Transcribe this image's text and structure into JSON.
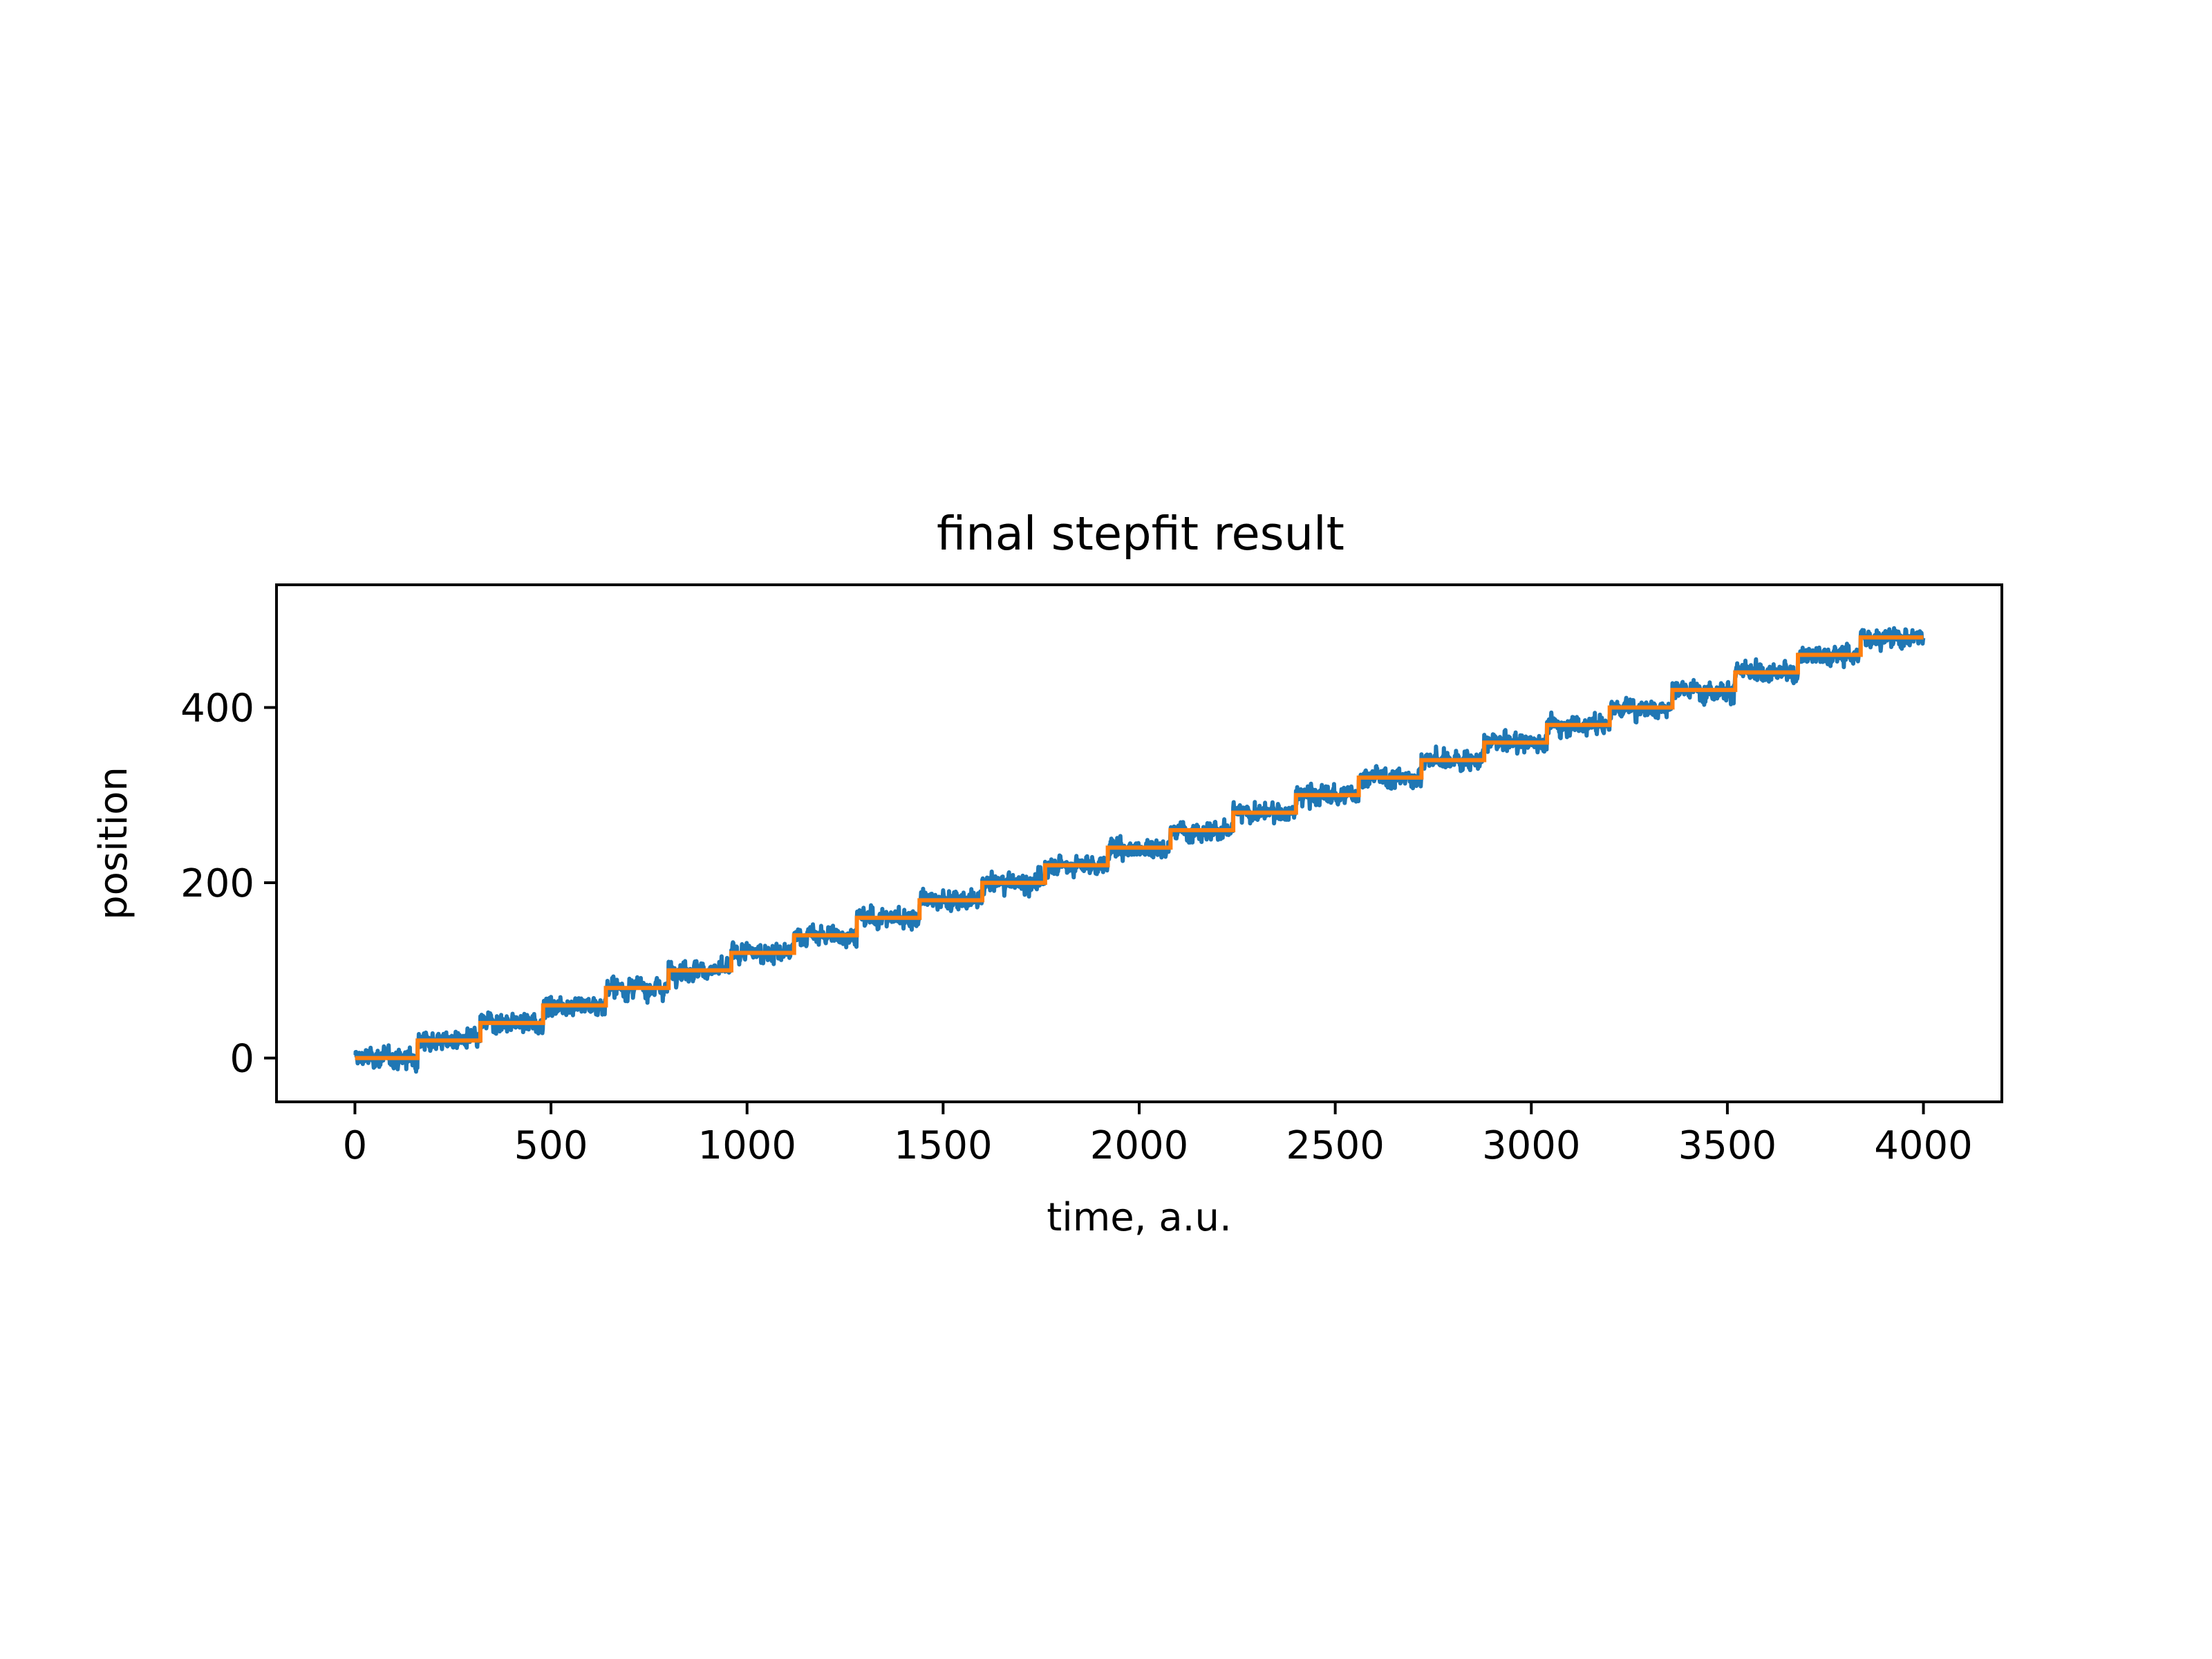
{
  "chart_data": {
    "type": "line",
    "title": "final stepfit result",
    "xlabel": "time, a.u.",
    "ylabel": "position",
    "xlim": [
      -200,
      4200
    ],
    "ylim": [
      -50,
      540
    ],
    "xticks": [
      0,
      500,
      1000,
      1500,
      2000,
      2500,
      3000,
      3500,
      4000
    ],
    "yticks": [
      0,
      200,
      400
    ],
    "grid": false,
    "legend": "none",
    "colors": {
      "data": "#1f77b4",
      "fit": "#ff7f0e"
    },
    "series": [
      {
        "role": "raw-data",
        "x_range": [
          0,
          4000
        ],
        "noise_amplitude": 12,
        "step_values": [
          0,
          20,
          40,
          60,
          80,
          100,
          120,
          140,
          160,
          180,
          200,
          220,
          240,
          260,
          280,
          300,
          320,
          340,
          360,
          380,
          400,
          420,
          440,
          460,
          480
        ]
      },
      {
        "role": "step-fit",
        "step_times": [
          0,
          160,
          320,
          480,
          640,
          800,
          960,
          1120,
          1280,
          1440,
          1600,
          1760,
          1920,
          2080,
          2240,
          2400,
          2560,
          2720,
          2880,
          3040,
          3200,
          3360,
          3520,
          3680,
          3840,
          4000
        ],
        "step_values": [
          0,
          20,
          40,
          60,
          80,
          100,
          120,
          140,
          160,
          180,
          200,
          220,
          240,
          260,
          280,
          300,
          320,
          340,
          360,
          380,
          400,
          420,
          440,
          460,
          480
        ]
      }
    ]
  }
}
